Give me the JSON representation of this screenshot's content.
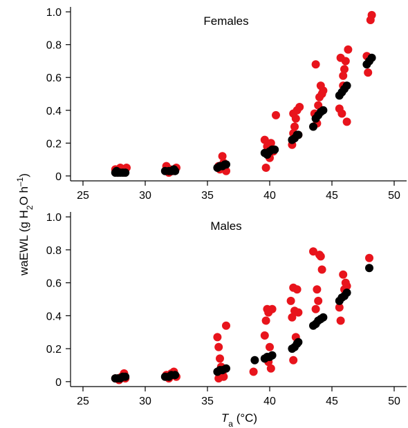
{
  "figure": {
    "ylabel": {
      "main": "waEWL (g H",
      "sub": "2",
      "mid": "O h",
      "sup": "–1",
      "end": ")"
    },
    "xlabel": {
      "italic": "T",
      "sub": "a",
      "rest": " (°C)"
    }
  },
  "chart_data": [
    {
      "type": "scatter",
      "title": "Females",
      "xlim": [
        24,
        51
      ],
      "ylim": [
        -0.03,
        1.03
      ],
      "xticks": [
        25,
        30,
        35,
        40,
        45,
        50
      ],
      "yticks": [
        0,
        0.2,
        0.4,
        0.6,
        0.8,
        1.0
      ],
      "ytick_labels": [
        "0",
        "0.2",
        "0.4",
        "0.6",
        "0.8",
        "1.0"
      ],
      "series": [
        {
          "color": "#e8141c",
          "points": [
            [
              27.6,
              0.04
            ],
            [
              27.9,
              0.03
            ],
            [
              28.0,
              0.05
            ],
            [
              28.3,
              0.02
            ],
            [
              28.5,
              0.05
            ],
            [
              27.8,
              0.02
            ],
            [
              31.7,
              0.06
            ],
            [
              32.0,
              0.04
            ],
            [
              32.2,
              0.03
            ],
            [
              32.5,
              0.05
            ],
            [
              31.9,
              0.02
            ],
            [
              35.9,
              0.06
            ],
            [
              36.2,
              0.12
            ],
            [
              36.0,
              0.04
            ],
            [
              36.5,
              0.03
            ],
            [
              36.3,
              0.08
            ],
            [
              39.6,
              0.22
            ],
            [
              39.8,
              0.18
            ],
            [
              39.9,
              0.13
            ],
            [
              40.0,
              0.11
            ],
            [
              40.1,
              0.2
            ],
            [
              40.3,
              0.15
            ],
            [
              39.7,
              0.05
            ],
            [
              40.5,
              0.37
            ],
            [
              41.8,
              0.19
            ],
            [
              41.9,
              0.26
            ],
            [
              42.0,
              0.3
            ],
            [
              42.1,
              0.35
            ],
            [
              42.2,
              0.4
            ],
            [
              42.3,
              0.25
            ],
            [
              41.9,
              0.38
            ],
            [
              42.4,
              0.42
            ],
            [
              43.6,
              0.38
            ],
            [
              43.8,
              0.32
            ],
            [
              43.9,
              0.43
            ],
            [
              44.0,
              0.48
            ],
            [
              44.1,
              0.55
            ],
            [
              44.2,
              0.5
            ],
            [
              43.7,
              0.68
            ],
            [
              44.3,
              0.52
            ],
            [
              45.6,
              0.41
            ],
            [
              45.8,
              0.38
            ],
            [
              45.9,
              0.55
            ],
            [
              46.0,
              0.65
            ],
            [
              46.1,
              0.7
            ],
            [
              46.2,
              0.33
            ],
            [
              45.7,
              0.72
            ],
            [
              46.3,
              0.77
            ],
            [
              45.9,
              0.61
            ],
            [
              47.8,
              0.73
            ],
            [
              47.9,
              0.63
            ],
            [
              48.1,
              0.95
            ],
            [
              48.2,
              0.98
            ]
          ]
        },
        {
          "color": "#000000",
          "points": [
            [
              27.6,
              0.02
            ],
            [
              27.8,
              0.02
            ],
            [
              28.0,
              0.02
            ],
            [
              28.2,
              0.02
            ],
            [
              28.4,
              0.02
            ],
            [
              27.7,
              0.03
            ],
            [
              31.6,
              0.03
            ],
            [
              31.9,
              0.03
            ],
            [
              32.1,
              0.03
            ],
            [
              32.3,
              0.04
            ],
            [
              32.4,
              0.03
            ],
            [
              35.8,
              0.05
            ],
            [
              36.0,
              0.06
            ],
            [
              36.2,
              0.06
            ],
            [
              36.4,
              0.07
            ],
            [
              36.5,
              0.07
            ],
            [
              39.6,
              0.14
            ],
            [
              39.8,
              0.13
            ],
            [
              40.0,
              0.15
            ],
            [
              40.2,
              0.16
            ],
            [
              40.4,
              0.16
            ],
            [
              41.8,
              0.22
            ],
            [
              42.0,
              0.23
            ],
            [
              42.2,
              0.25
            ],
            [
              42.3,
              0.25
            ],
            [
              43.5,
              0.3
            ],
            [
              43.7,
              0.35
            ],
            [
              43.9,
              0.37
            ],
            [
              44.1,
              0.39
            ],
            [
              44.3,
              0.4
            ],
            [
              45.6,
              0.49
            ],
            [
              45.8,
              0.51
            ],
            [
              46.0,
              0.53
            ],
            [
              46.2,
              0.55
            ],
            [
              47.8,
              0.68
            ],
            [
              48.0,
              0.7
            ],
            [
              48.2,
              0.72
            ]
          ]
        }
      ]
    },
    {
      "type": "scatter",
      "title": "Males",
      "xlim": [
        24,
        51
      ],
      "ylim": [
        -0.03,
        1.03
      ],
      "xticks": [
        25,
        30,
        35,
        40,
        45,
        50
      ],
      "yticks": [
        0,
        0.2,
        0.4,
        0.6,
        0.8,
        1.0
      ],
      "ytick_labels": [
        "0",
        "0.2",
        "0.4",
        "0.6",
        "0.8",
        "1.0"
      ],
      "series": [
        {
          "color": "#e8141c",
          "points": [
            [
              27.6,
              0.02
            ],
            [
              27.9,
              0.01
            ],
            [
              28.1,
              0.03
            ],
            [
              28.3,
              0.05
            ],
            [
              28.4,
              0.02
            ],
            [
              31.7,
              0.04
            ],
            [
              31.9,
              0.02
            ],
            [
              32.1,
              0.05
            ],
            [
              32.3,
              0.06
            ],
            [
              32.5,
              0.03
            ],
            [
              35.8,
              0.27
            ],
            [
              35.9,
              0.21
            ],
            [
              36.0,
              0.14
            ],
            [
              36.1,
              0.09
            ],
            [
              36.2,
              0.05
            ],
            [
              36.3,
              0.03
            ],
            [
              36.5,
              0.34
            ],
            [
              35.9,
              0.02
            ],
            [
              38.7,
              0.06
            ],
            [
              39.6,
              0.28
            ],
            [
              39.7,
              0.37
            ],
            [
              39.8,
              0.44
            ],
            [
              39.9,
              0.42
            ],
            [
              40.0,
              0.21
            ],
            [
              40.1,
              0.08
            ],
            [
              40.2,
              0.44
            ],
            [
              39.9,
              0.12
            ],
            [
              41.7,
              0.49
            ],
            [
              41.8,
              0.39
            ],
            [
              41.9,
              0.57
            ],
            [
              42.0,
              0.43
            ],
            [
              42.1,
              0.27
            ],
            [
              42.2,
              0.56
            ],
            [
              41.9,
              0.13
            ],
            [
              42.3,
              0.42
            ],
            [
              43.5,
              0.79
            ],
            [
              43.7,
              0.44
            ],
            [
              43.8,
              0.56
            ],
            [
              44.0,
              0.77
            ],
            [
              44.1,
              0.76
            ],
            [
              44.2,
              0.68
            ],
            [
              43.9,
              0.49
            ],
            [
              45.6,
              0.45
            ],
            [
              45.7,
              0.37
            ],
            [
              45.9,
              0.65
            ],
            [
              46.0,
              0.56
            ],
            [
              46.1,
              0.6
            ],
            [
              46.2,
              0.58
            ],
            [
              48.0,
              0.75
            ]
          ]
        },
        {
          "color": "#000000",
          "points": [
            [
              27.6,
              0.02
            ],
            [
              27.8,
              0.02
            ],
            [
              28.0,
              0.02
            ],
            [
              28.2,
              0.03
            ],
            [
              28.4,
              0.03
            ],
            [
              31.6,
              0.03
            ],
            [
              31.9,
              0.03
            ],
            [
              32.1,
              0.04
            ],
            [
              32.4,
              0.04
            ],
            [
              35.8,
              0.06
            ],
            [
              36.0,
              0.07
            ],
            [
              36.2,
              0.07
            ],
            [
              36.5,
              0.08
            ],
            [
              38.8,
              0.13
            ],
            [
              39.6,
              0.14
            ],
            [
              39.8,
              0.15
            ],
            [
              40.0,
              0.15
            ],
            [
              40.2,
              0.16
            ],
            [
              41.8,
              0.2
            ],
            [
              42.0,
              0.21
            ],
            [
              42.2,
              0.23
            ],
            [
              42.3,
              0.24
            ],
            [
              43.5,
              0.34
            ],
            [
              43.7,
              0.35
            ],
            [
              43.9,
              0.37
            ],
            [
              44.1,
              0.38
            ],
            [
              44.3,
              0.39
            ],
            [
              45.6,
              0.49
            ],
            [
              45.8,
              0.51
            ],
            [
              46.0,
              0.52
            ],
            [
              46.2,
              0.54
            ],
            [
              48.0,
              0.69
            ]
          ]
        }
      ]
    }
  ]
}
